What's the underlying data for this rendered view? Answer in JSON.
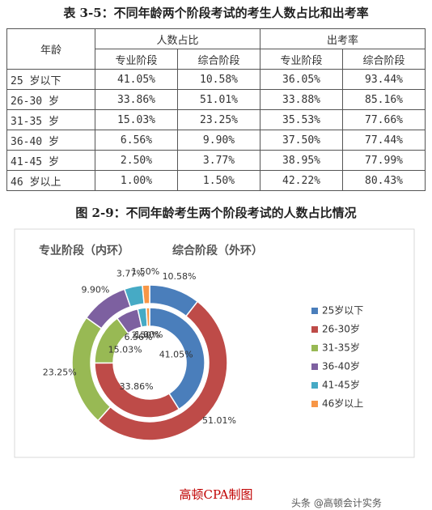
{
  "table_title": "表 3-5：不同年龄两个阶段考试的考生人数占比和出考率",
  "table": {
    "header": [
      "年龄",
      "人数占比",
      "出考率"
    ],
    "subheader": [
      "专业阶段",
      "综合阶段",
      "专业阶段",
      "综合阶段"
    ],
    "rows": [
      [
        "25 岁以下",
        "41.05%",
        "10.58%",
        "36.05%",
        "93.44%"
      ],
      [
        "26-30 岁",
        "33.86%",
        "51.01%",
        "33.88%",
        "85.16%"
      ],
      [
        "31-35 岁",
        "15.03%",
        "23.25%",
        "35.53%",
        "77.66%"
      ],
      [
        "36-40 岁",
        "6.56%",
        "9.90%",
        "37.50%",
        "77.44%"
      ],
      [
        "41-45 岁",
        "2.50%",
        "3.77%",
        "38.95%",
        "77.99%"
      ],
      [
        "46 岁以上",
        "1.00%",
        "1.50%",
        "42.22%",
        "80.43%"
      ]
    ]
  },
  "figure_title": "图 2-9：不同年龄考生两个阶段考试的人数占比情况",
  "chart_data": {
    "type": "donut",
    "categories": [
      "25岁以下",
      "26-30岁",
      "31-35岁",
      "36-40岁",
      "41-45岁",
      "46岁以上"
    ],
    "colors": [
      "#4a7ebb",
      "#be4b48",
      "#98b954",
      "#7d60a0",
      "#46aac5",
      "#f79646"
    ],
    "series": [
      {
        "name": "专业阶段（内环）",
        "values": [
          41.05,
          33.86,
          15.03,
          6.56,
          2.5,
          1.0
        ],
        "value_labels": [
          "41.05%",
          "33.86%",
          "15.03%",
          "6.56%",
          "2.50%",
          "1.00%"
        ]
      },
      {
        "name": "综合阶段（外环）",
        "values": [
          10.58,
          51.01,
          23.25,
          9.9,
          3.77,
          1.5
        ],
        "value_labels": [
          "10.58%",
          "51.01%",
          "23.25%",
          "9.90%",
          "3.77%",
          "1.50%"
        ]
      }
    ]
  },
  "footer": "高顿CPA制图",
  "watermark": "头条 @高顿会计实务"
}
